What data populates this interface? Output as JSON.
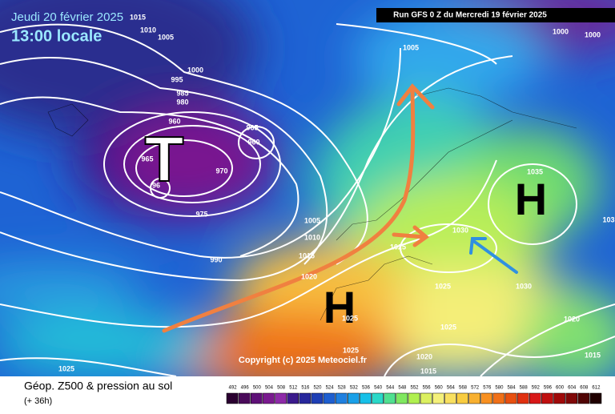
{
  "header": {
    "date": "Jeudi 20 février 2025",
    "time": "13:00 locale",
    "run": "Run GFS 0 Z du Mercredi 19 février 2025"
  },
  "copyright": "Copyright (c) 2025 Meteociel.fr",
  "centers": {
    "low": "T",
    "high_east": "H",
    "high_south": "H"
  },
  "isobar_labels": [
    "1015",
    "1010",
    "1005",
    "1000",
    "995",
    "985",
    "980",
    "960",
    "965",
    "960",
    "965",
    "970",
    "96",
    "975",
    "990",
    "1005",
    "1000",
    "1000",
    "1005",
    "1010",
    "1015",
    "1020",
    "1025",
    "1030",
    "1035",
    "1030",
    "1025",
    "1025",
    "1025",
    "1025",
    "1020",
    "1015",
    "1020",
    "1015",
    "1025",
    "103"
  ],
  "footer": {
    "title": "Géop. Z500 & pression au sol",
    "lead": "(+ 36h)"
  },
  "legend": {
    "labels": [
      492,
      496,
      500,
      504,
      508,
      512,
      516,
      520,
      524,
      528,
      532,
      536,
      540,
      544,
      548,
      552,
      556,
      560,
      564,
      568,
      572,
      576,
      580,
      584,
      588,
      592,
      596,
      600,
      604,
      608,
      612
    ],
    "colors": [
      "#2a0030",
      "#4a0a5a",
      "#5e1077",
      "#7a1a8f",
      "#8e2aa8",
      "#3b1a8c",
      "#27279c",
      "#1f3fb5",
      "#1f5fd0",
      "#1f80e0",
      "#1aa0e8",
      "#17c0e8",
      "#2ad8c8",
      "#50e090",
      "#80e860",
      "#b0f050",
      "#dcf060",
      "#f4f07a",
      "#f8e060",
      "#f8cc40",
      "#f8b030",
      "#f89020",
      "#f07018",
      "#e85010",
      "#e03010",
      "#d81818",
      "#c01010",
      "#a00a0a",
      "#800808",
      "#500404",
      "#200000"
    ]
  }
}
